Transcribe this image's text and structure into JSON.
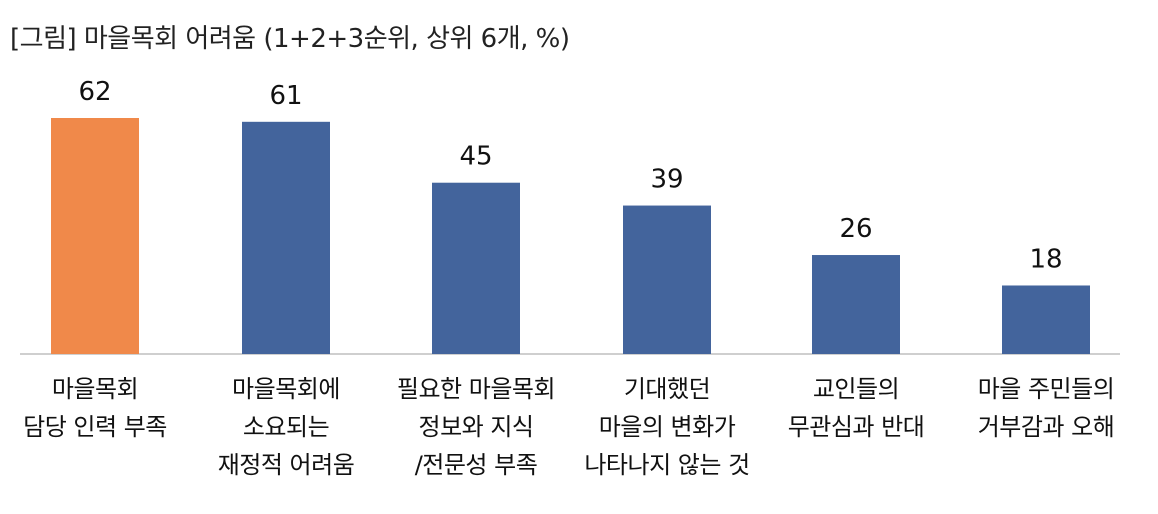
{
  "title": "[그림] 마을목회 어려움 (1+2+3순위, 상위 6개, %)",
  "colors": {
    "highlight": "#F0894A",
    "bar": "#43649C",
    "axis": "#BFBFBF"
  },
  "chart_data": {
    "type": "bar",
    "title": "[그림] 마을목회 어려움 (1+2+3순위, 상위 6개, %)",
    "categories": [
      [
        "마을목회",
        "담당 인력 부족"
      ],
      [
        "마을목회에",
        "소요되는",
        "재정적 어려움"
      ],
      [
        "필요한 마을목회",
        "정보와 지식",
        "/전문성 부족"
      ],
      [
        "기대했던",
        "마을의 변화가",
        "나타나지 않는 것"
      ],
      [
        "교인들의",
        "무관심과 반대"
      ],
      [
        "마을 주민들의",
        "거부감과 오해"
      ]
    ],
    "values": [
      62,
      61,
      45,
      39,
      26,
      18
    ],
    "highlight_index": 0,
    "ylim": [
      0,
      62
    ],
    "grid": false,
    "legend": "none"
  }
}
